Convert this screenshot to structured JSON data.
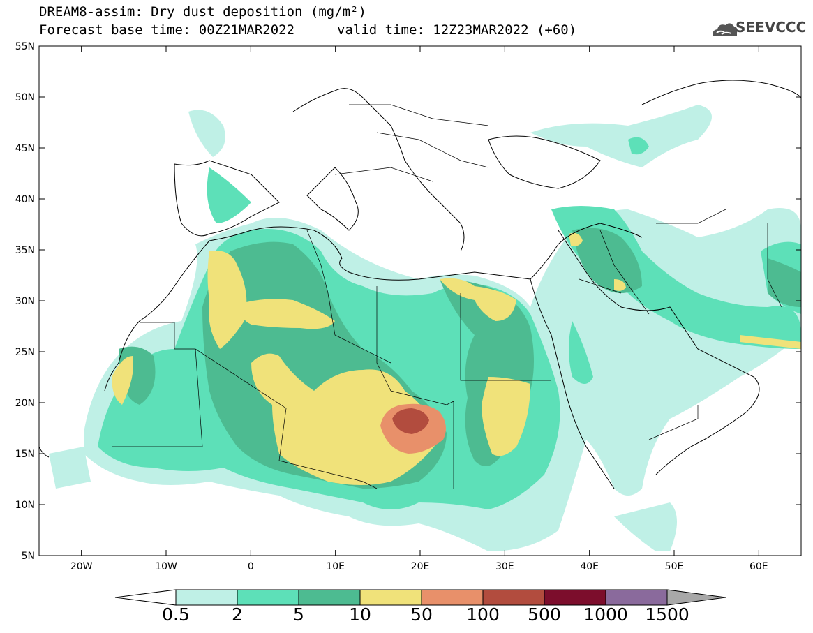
{
  "header": {
    "title": "DREAM8-assim: Dry dust deposition (mg/m²)",
    "base_time": "Forecast base time: 00Z21MAR2022",
    "valid_time": "valid time: 12Z23MAR2022 (+60)"
  },
  "logo": {
    "text": "SEEVCCC",
    "icon": "cloud-icon"
  },
  "map": {
    "lon_range": [
      -25,
      65
    ],
    "lat_range": [
      5,
      55
    ],
    "lat_ticks": [
      "55N",
      "50N",
      "45N",
      "40N",
      "35N",
      "30N",
      "25N",
      "20N",
      "15N",
      "10N",
      "5N"
    ],
    "lon_ticks": [
      "20W",
      "10W",
      "0",
      "10E",
      "20E",
      "30E",
      "40E",
      "50E",
      "60E"
    ]
  },
  "colorbar": {
    "labels": [
      "0.5",
      "2",
      "5",
      "10",
      "50",
      "100",
      "500",
      "1000",
      "1500"
    ],
    "colors": [
      "#bff0e6",
      "#5de0b8",
      "#4dbb91",
      "#f0e27a",
      "#e8906a",
      "#b24c3e",
      "#7c0d2c",
      "#8a6a9c",
      "#a8a8a8"
    ]
  }
}
